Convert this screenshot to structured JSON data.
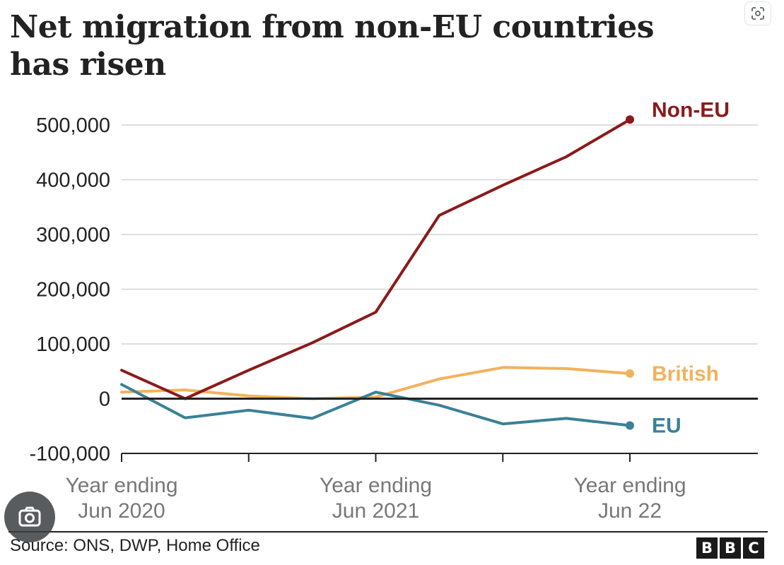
{
  "title": "Net migration from non-EU countries has risen",
  "source": "Source: ONS, DWP, Home Office",
  "brand_letters": [
    "B",
    "B",
    "C"
  ],
  "icons": {
    "lens": "google-lens-icon",
    "camera": "visual-search-camera-icon"
  },
  "colors": {
    "non_eu": "#8b1a1a",
    "british": "#f2b25c",
    "eu": "#3a8196",
    "grid": "#d4d4d4",
    "zero_line": "#222222",
    "text": "#222222",
    "tick_label": "#777777"
  },
  "chart_data": {
    "type": "line",
    "title": "Net migration from non-EU countries has risen",
    "xlabel": "",
    "ylabel": "",
    "ylim": [
      -100000,
      500000
    ],
    "yticks": [
      500000,
      400000,
      300000,
      200000,
      100000,
      0,
      -100000
    ],
    "ytick_labels": [
      "500,000",
      "400,000",
      "300,000",
      "200,000",
      "100,000",
      "0",
      "-100,000"
    ],
    "x": [
      0,
      1,
      2,
      3,
      4,
      5,
      6,
      7,
      8
    ],
    "xtick_positions": [
      0,
      2,
      4,
      6,
      8
    ],
    "xtick_labels": [
      {
        "index": 0,
        "line1": "Year ending",
        "line2": "Jun 2020"
      },
      {
        "index": 4,
        "line1": "Year ending",
        "line2": "Jun 2021"
      },
      {
        "index": 8,
        "line1": "Year ending",
        "line2": "Jun 22"
      }
    ],
    "grid": true,
    "series": [
      {
        "key": "non_eu",
        "name": "Non-EU",
        "values": [
          52000,
          0,
          52000,
          102000,
          158000,
          335000,
          390000,
          442000,
          510000
        ]
      },
      {
        "key": "british",
        "name": "British",
        "values": [
          12000,
          16000,
          5000,
          0,
          3000,
          36000,
          57000,
          55000,
          46000
        ]
      },
      {
        "key": "eu",
        "name": "EU",
        "values": [
          26000,
          -35000,
          -21000,
          -36000,
          12000,
          -12000,
          -46000,
          -36000,
          -49000
        ]
      }
    ]
  }
}
